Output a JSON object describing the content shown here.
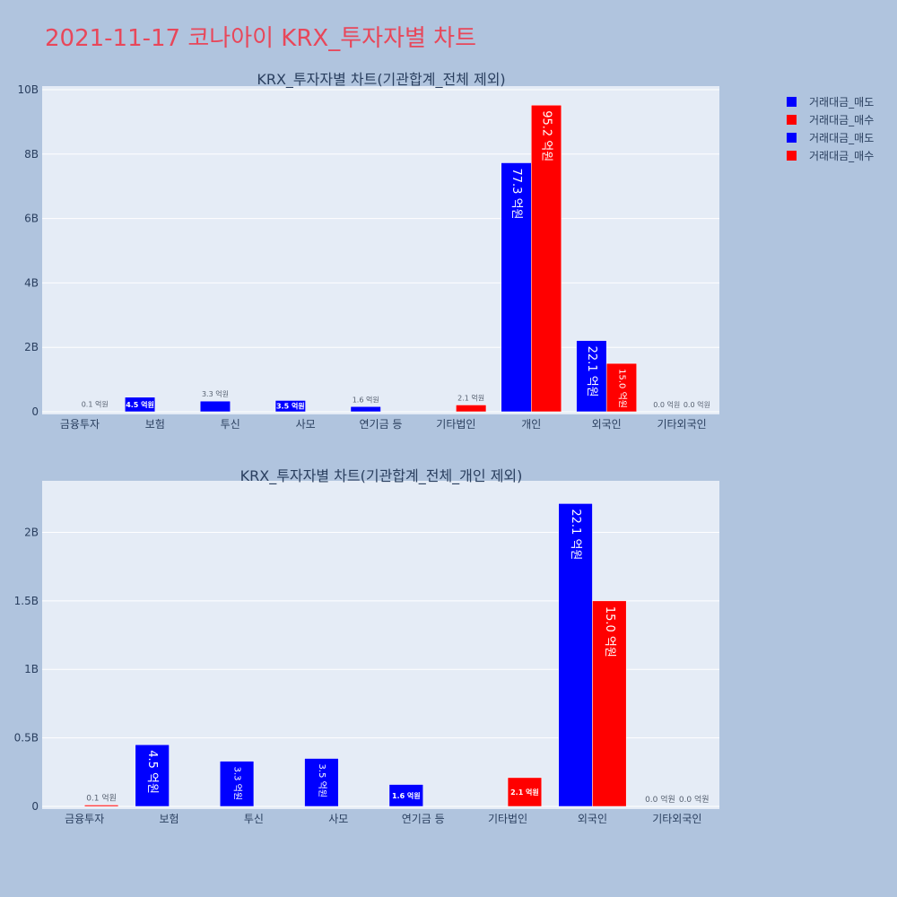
{
  "page": {
    "title": "2021-11-17 코나아이 KRX_투자자별 차트"
  },
  "legend": {
    "placement": "top-right",
    "items": [
      {
        "label": "거래대금_매도",
        "color": "#0000ff"
      },
      {
        "label": "거래대금_매수",
        "color": "#ff0000"
      },
      {
        "label": "거래대금_매도",
        "color": "#0000ff"
      },
      {
        "label": "거래대금_매수",
        "color": "#ff0000"
      }
    ]
  },
  "chart_data": [
    {
      "type": "bar",
      "title": "KRX_투자자별 차트(기관합계_전체 제외)",
      "categories": [
        "금융투자",
        "보험",
        "투신",
        "사모",
        "연기금 등",
        "기타법인",
        "개인",
        "외국인",
        "기타외국인"
      ],
      "ylim": [
        0,
        10
      ],
      "yticks": [
        0,
        2,
        4,
        6,
        8,
        10
      ],
      "ytick_labels": [
        "0",
        "2B",
        "4B",
        "6B",
        "8B",
        "10B"
      ],
      "grid": true,
      "series": [
        {
          "name": "거래대금_매도",
          "color": "#0000ff",
          "values": [
            0,
            0.45,
            0.33,
            0.35,
            0.16,
            0,
            7.73,
            2.21,
            0
          ],
          "labels": [
            "",
            "4.5 억원",
            "3.3 억원",
            "3.5 억원",
            "1.6 억원",
            "",
            "77.3 억원",
            "22.1 억원",
            "0.0 억원"
          ]
        },
        {
          "name": "거래대금_매수",
          "color": "#ff0000",
          "values": [
            0.01,
            0,
            0,
            0,
            0,
            0.21,
            9.52,
            1.5,
            0
          ],
          "labels": [
            "0.1 억원",
            "",
            "",
            "",
            "",
            "2.1 억원",
            "95.2 억원",
            "15.0 억원",
            "0.0 억원"
          ]
        }
      ]
    },
    {
      "type": "bar",
      "title": "KRX_투자자별 차트(기관합계_전체_개인 제외)",
      "categories": [
        "금융투자",
        "보험",
        "투신",
        "사모",
        "연기금 등",
        "기타법인",
        "외국인",
        "기타외국인"
      ],
      "ylim": [
        0,
        2.35
      ],
      "yticks": [
        0,
        0.5,
        1,
        1.5,
        2
      ],
      "ytick_labels": [
        "0",
        "0.5B",
        "1B",
        "1.5B",
        "2B"
      ],
      "grid": true,
      "series": [
        {
          "name": "거래대금_매도",
          "color": "#0000ff",
          "values": [
            0,
            0.45,
            0.33,
            0.35,
            0.16,
            0,
            2.21,
            0
          ],
          "labels": [
            "",
            "4.5 억원",
            "3.3 억원",
            "3.5 억원",
            "1.6 억원",
            "",
            "22.1 억원",
            "0.0 억원"
          ]
        },
        {
          "name": "거래대금_매수",
          "color": "#ff0000",
          "values": [
            0.01,
            0,
            0,
            0,
            0,
            0.21,
            1.5,
            0
          ],
          "labels": [
            "0.1 억원",
            "",
            "",
            "",
            "",
            "2.1 억원",
            "15.0 억원",
            "0.0 억원"
          ]
        }
      ]
    }
  ]
}
